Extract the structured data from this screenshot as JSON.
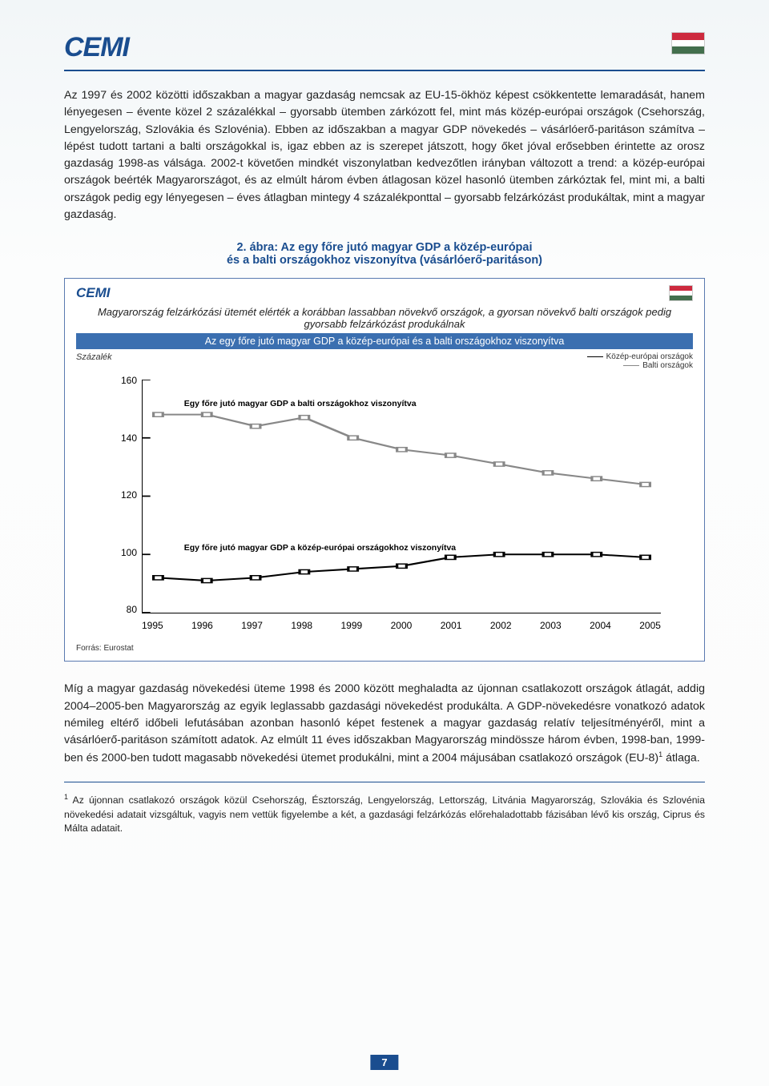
{
  "logo_text": "CEMI",
  "paragraph1": "Az 1997 és 2002 közötti időszakban a magyar gazdaság nemcsak az EU-15-ökhöz képest csökkentette lemaradását, hanem lényegesen – évente közel 2 százalékkal – gyorsabb ütemben zárkózott fel, mint más közép-európai országok (Csehország, Lengyelország, Szlovákia és Szlovénia). Ebben az időszakban a magyar GDP növekedés – vásárlóerő-paritáson számítva – lépést tudott tartani a balti országokkal is, igaz ebben az is szerepet játszott, hogy őket jóval erősebben érintette az orosz gazdaság 1998-as válsága. 2002-t követően mindkét viszonylatban kedvezőtlen irányban változott a trend: a közép-európai országok beérték Magyarországot, és az elmúlt három évben átlagosan közel hasonló ütemben zárkóztak fel, mint mi, a balti országok pedig egy lényegesen – éves átlagban mintegy 4 százalékponttal – gyorsabb felzárkózást produkáltak, mint a magyar gazdaság.",
  "figure_title_l1": "2. ábra: Az egy főre jutó magyar GDP a közép-európai",
  "figure_title_l2": "és a balti országokhoz viszonyítva (vásárlóerő-paritáson)",
  "chart": {
    "type": "line",
    "inner_logo": "CEMI",
    "subtitle": "Magyarország felzárkózási ütemét elérték a korábban lassabban növekvő országok, a gyorsan növekvő balti országok pedig gyorsabb felzárkózást produkálnak",
    "banner": "Az egy főre jutó magyar GDP a közép-európai és a balti országokhoz viszonyítva",
    "y_label": "Százalék",
    "legend1": "Közép-európai országok",
    "legend2": "Balti országok",
    "ylim": [
      80,
      160
    ],
    "ytick_step": 20,
    "yticks": [
      "160",
      "140",
      "120",
      "100",
      "80"
    ],
    "xticks": [
      "1995",
      "1996",
      "1997",
      "1998",
      "1999",
      "2000",
      "2001",
      "2002",
      "2003",
      "2004",
      "2005"
    ],
    "series_baltic": {
      "color": "#888888",
      "marker": "square",
      "values": [
        148,
        148,
        144,
        147,
        140,
        136,
        134,
        131,
        128,
        126,
        124
      ]
    },
    "series_central": {
      "color": "#000000",
      "marker": "square",
      "values": [
        92,
        91,
        92,
        94,
        95,
        96,
        99,
        100,
        100,
        100,
        99
      ]
    },
    "annot1": "Egy főre jutó magyar GDP a balti országokhoz viszonyítva",
    "annot2": "Egy főre jutó magyar GDP a közép-európai országokhoz viszonyítva",
    "source": "Forrás: Eurostat",
    "background_color": "#ffffff"
  },
  "paragraph2_a": "Míg a magyar gazdaság növekedési üteme 1998 és 2000 között meghaladta az újonnan csatlakozott országok átlagát, addig 2004–2005-ben Magyarország az egyik leglassabb gazdasági növekedést produkálta. A GDP-növekedésre vonatkozó adatok némileg eltérő időbeli lefutásában azonban hasonló képet festenek a magyar gazdaság relatív teljesítményéről, mint a vásárlóerő-paritáson számított adatok. Az elmúlt 11 éves időszakban Magyarország mindössze három évben, 1998-ban, 1999-ben és 2000-ben tudott magasabb növekedési ütemet produkálni, mint a 2004 májusában csatlakozó országok (EU-8)",
  "paragraph2_b": " átlaga.",
  "footnote_sup": "1",
  "footnote_text": " Az újonnan csatlakozó országok közül Csehország, Észtország, Lengyelország, Lettország, Litvánia Magyarország, Szlovákia és Szlovénia növekedési adatait vizsgáltuk, vagyis nem vettük figyelembe a két, a gazdasági felzárkózás előrehaladottabb fázisában lévő kis ország, Ciprus és Málta adatait.",
  "page_number": "7"
}
